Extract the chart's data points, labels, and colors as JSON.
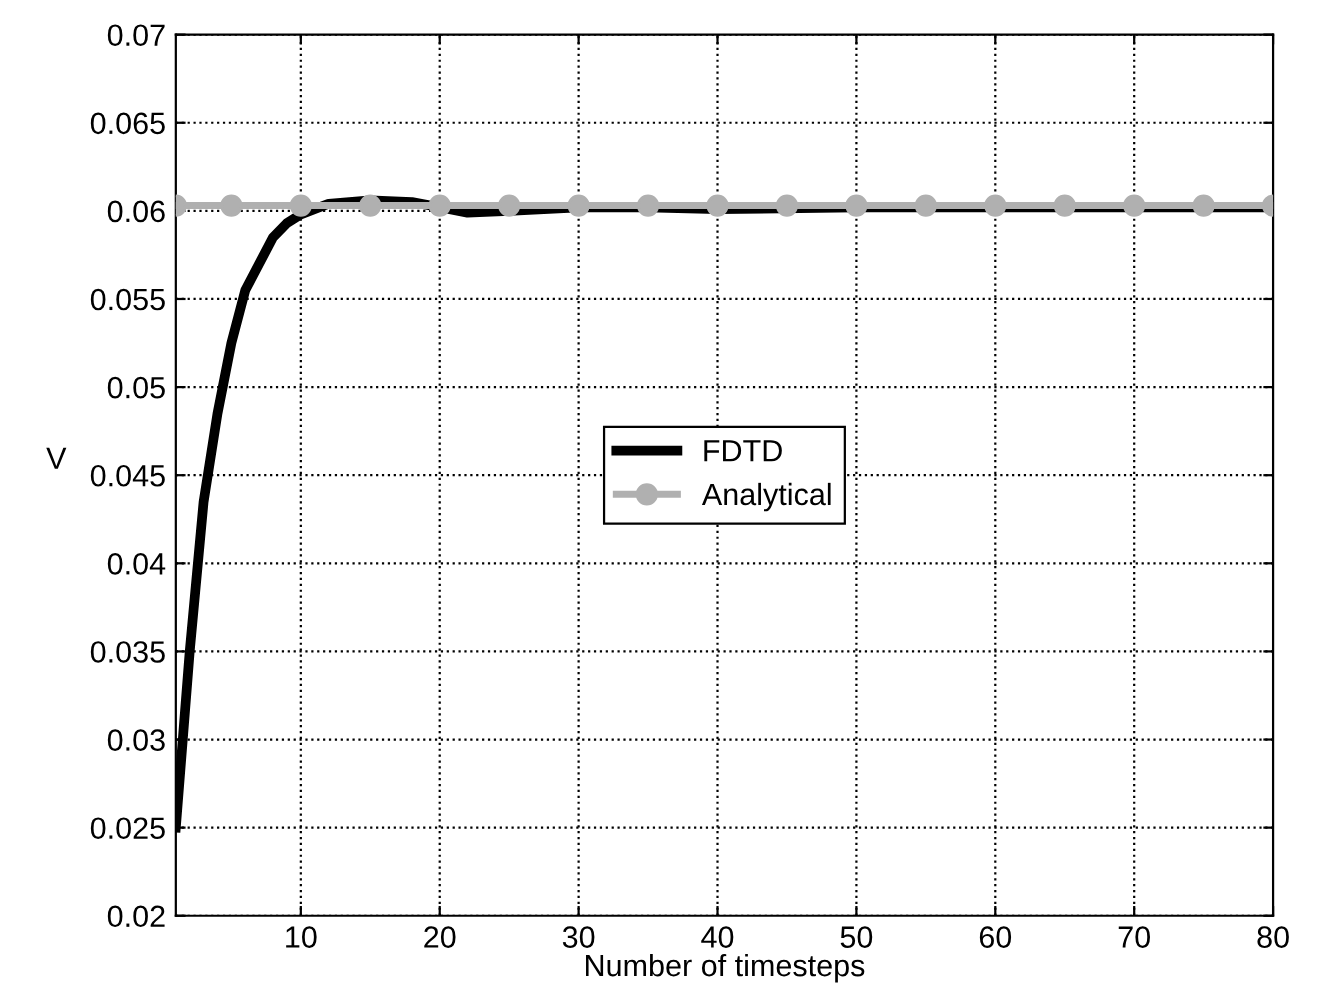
{
  "chart_data": {
    "type": "line",
    "xlabel": "Number of timesteps",
    "ylabel": "V",
    "xlim": [
      1,
      80
    ],
    "xticks": [
      10,
      20,
      30,
      40,
      50,
      60,
      70,
      80
    ],
    "ylim": [
      0.02,
      0.07
    ],
    "yticks": [
      0.02,
      0.025,
      0.03,
      0.035,
      0.04,
      0.045,
      0.05,
      0.055,
      0.06,
      0.065,
      0.07
    ],
    "grid": true,
    "legend": "center",
    "series": [
      {
        "name": "FDTD",
        "color": "#000000",
        "marker": "none",
        "x": [
          1,
          2,
          3,
          4,
          5,
          6,
          7,
          8,
          9,
          10,
          12,
          15,
          18,
          20,
          22,
          25,
          30,
          35,
          40,
          50,
          60,
          70,
          80
        ],
        "values": [
          0.025,
          0.035,
          0.0435,
          0.0485,
          0.0525,
          0.0555,
          0.057,
          0.0585,
          0.0593,
          0.0598,
          0.0604,
          0.0606,
          0.0605,
          0.0602,
          0.0599,
          0.06,
          0.0602,
          0.0602,
          0.0601,
          0.0602,
          0.0602,
          0.0602,
          0.0602
        ]
      },
      {
        "name": "Analytical",
        "color": "#b0b0b0",
        "marker": "circle",
        "x": [
          1,
          5,
          10,
          15,
          20,
          25,
          30,
          35,
          40,
          45,
          50,
          55,
          60,
          65,
          70,
          75,
          80
        ],
        "values": [
          0.0603,
          0.0603,
          0.0603,
          0.0603,
          0.0603,
          0.0603,
          0.0603,
          0.0603,
          0.0603,
          0.0603,
          0.0603,
          0.0603,
          0.0603,
          0.0603,
          0.0603,
          0.0603,
          0.0603
        ]
      }
    ]
  }
}
